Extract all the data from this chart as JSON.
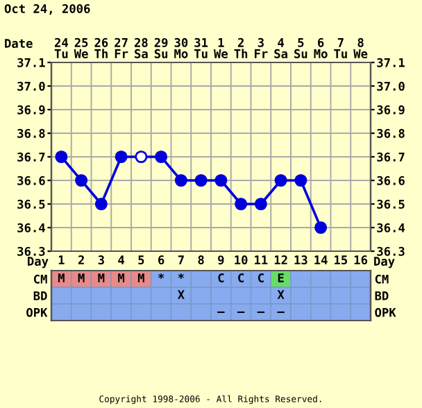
{
  "chart_data": [
    {
      "type": "line",
      "title": "Oct 24, 2006",
      "xlabel": "Date",
      "categories": [
        "24\nTu",
        "25\nWe",
        "26\nTh",
        "27\nFr",
        "28\nSa",
        "29\nSu",
        "30\nMo",
        "31\nTu",
        "1\nWe",
        "2\nTh",
        "3\nFr",
        "4\nSa",
        "5\nSu",
        "6\nMo",
        "7\nTu",
        "8\nWe"
      ],
      "series": [
        {
          "color": "#0000dd",
          "values": [
            36.7,
            36.6,
            36.5,
            36.7,
            36.7,
            36.7,
            36.6,
            36.6,
            36.6,
            36.5,
            36.5,
            36.6,
            36.6,
            36.4,
            null,
            null
          ],
          "colors": [
            "#0000dd",
            "#0000dd",
            "#0000dd",
            "#0000dd",
            "#ffffff",
            "#0000dd",
            "#0000dd",
            "#0000dd",
            "#0000dd",
            "#0000dd",
            "#0000dd",
            "#0000dd",
            "#0000dd",
            "#0000dd",
            "#0000dd",
            "#0000dd"
          ]
        }
      ],
      "ylim": [
        36.3,
        37.1
      ],
      "yticks": [
        36.3,
        36.4,
        36.5,
        36.6,
        36.7,
        36.8,
        36.9,
        {
          "value": 37,
          "label": "37.0"
        },
        37.1
      ],
      "y2lim": [
        36.3,
        37.1
      ],
      "y2ticks": [
        36.3,
        36.4,
        36.5,
        36.6,
        36.7,
        36.8,
        36.9,
        {
          "value": 37,
          "label": "37.0"
        },
        37.1
      ],
      "grid": true,
      "marker": "circle",
      "line_style": "solid"
    },
    {
      "type": "heatmap",
      "xlabel": "Day",
      "categories": [
        "1",
        "2",
        "3",
        "4",
        "5",
        "6",
        "7",
        "8",
        "9",
        "10",
        "11",
        "12",
        "13",
        "14",
        "15",
        "16"
      ],
      "y_categories": [
        "CM",
        "BD",
        "OPK"
      ],
      "y2_categories": [
        "CM",
        "BD",
        "OPK"
      ],
      "cells": [
        [
          null,
          null,
          null,
          null,
          null,
          null,
          null,
          null,
          null,
          null,
          null,
          null,
          null,
          null,
          null,
          null
        ],
        [
          null,
          null,
          null,
          null,
          null,
          null,
          null,
          null,
          null,
          null,
          null,
          null,
          null,
          null,
          null,
          null
        ],
        [
          null,
          null,
          null,
          null,
          null,
          null,
          null,
          null,
          null,
          null,
          null,
          null,
          null,
          null,
          null,
          null
        ]
      ],
      "cell_labels": [
        [
          "M",
          "M",
          "M",
          "M",
          "M",
          "*",
          "*",
          null,
          "C",
          "C",
          "C",
          "E",
          null,
          null,
          null,
          null
        ],
        [
          null,
          null,
          null,
          null,
          null,
          null,
          "X",
          null,
          null,
          null,
          null,
          "X",
          null,
          null,
          null,
          null
        ],
        [
          null,
          null,
          null,
          null,
          null,
          null,
          null,
          null,
          "–",
          "–",
          "–",
          "–",
          null,
          null,
          null,
          null
        ]
      ],
      "colors": [
        [
          "#e88a8a",
          "#e88a8a",
          "#e88a8a",
          "#e88a8a",
          "#e88a8a",
          "#88aaee",
          "#88aaee",
          "#88aaee",
          "#88aaee",
          "#88aaee",
          "#88aaee",
          "#66dd66",
          "#88aaee",
          "#88aaee",
          "#88aaee",
          "#88aaee"
        ],
        [
          "#88aaee",
          "#88aaee",
          "#88aaee",
          "#88aaee",
          "#88aaee",
          "#88aaee",
          "#88aaee",
          "#88aaee",
          "#88aaee",
          "#88aaee",
          "#88aaee",
          "#88aaee",
          "#88aaee",
          "#88aaee",
          "#88aaee",
          "#88aaee"
        ],
        [
          "#88aaee",
          "#88aaee",
          "#88aaee",
          "#88aaee",
          "#88aaee",
          "#88aaee",
          "#88aaee",
          "#88aaee",
          "#88aaee",
          "#88aaee",
          "#88aaee",
          "#88aaee",
          "#88aaee",
          "#88aaee",
          "#88aaee",
          "#88aaee"
        ]
      ],
      "annotations": [
        "Copyright 1998-2006 - All Rights Reserved."
      ]
    }
  ]
}
